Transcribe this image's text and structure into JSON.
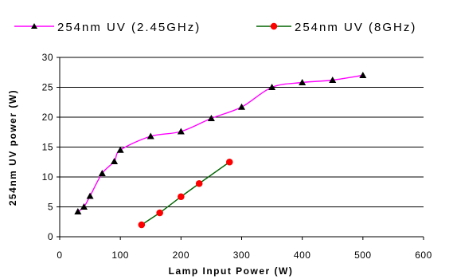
{
  "chart_data": {
    "type": "line",
    "xlabel": "Lamp Input Power (W)",
    "ylabel": "254nm UV power (W)",
    "xlim": [
      0,
      600
    ],
    "ylim": [
      0,
      30
    ],
    "xticks": [
      "0",
      "100",
      "200",
      "300",
      "400",
      "500",
      "600"
    ],
    "yticks": [
      "0",
      "5",
      "10",
      "15",
      "20",
      "25",
      "30"
    ],
    "grid": "horizontal",
    "legend_position": "top",
    "series": [
      {
        "name": "254nm UV (2.45GHz)",
        "color": "#ff00ff",
        "marker": "triangle",
        "marker_color": "#000000",
        "smooth": true,
        "x": [
          30,
          40,
          50,
          70,
          90,
          100,
          150,
          200,
          250,
          300,
          350,
          400,
          450,
          500
        ],
        "y": [
          4.2,
          5.0,
          6.8,
          10.6,
          12.6,
          14.5,
          16.8,
          17.6,
          19.8,
          21.7,
          25.0,
          25.8,
          26.2,
          27.0
        ]
      },
      {
        "name": "254nm UV (8GHz)",
        "color": "#006400",
        "marker": "circle",
        "marker_color": "#ff0000",
        "smooth": false,
        "x": [
          135,
          165,
          200,
          230,
          280
        ],
        "y": [
          2.0,
          4.0,
          6.7,
          8.9,
          12.5
        ]
      }
    ]
  }
}
